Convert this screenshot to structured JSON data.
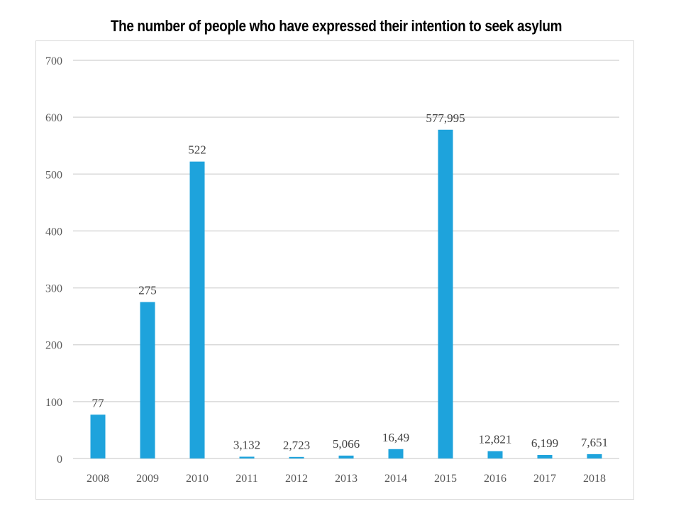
{
  "title": "The number of people who have expressed their intention to seek asylum",
  "colors": {
    "bar": "#1ea3dc",
    "grid": "#d9d9d9",
    "tick_text": "#595959",
    "label_text": "#404040"
  },
  "chart_data": {
    "type": "bar",
    "title": "The number of people who have expressed their intention to seek asylum",
    "xlabel": "",
    "ylabel": "",
    "ylim": [
      0,
      700
    ],
    "yticks": [
      0,
      100,
      200,
      300,
      400,
      500,
      600,
      700
    ],
    "grid": true,
    "categories": [
      "2008",
      "2009",
      "2010",
      "2011",
      "2012",
      "2013",
      "2014",
      "2015",
      "2016",
      "2017",
      "2018"
    ],
    "values": [
      77,
      275,
      522,
      3.132,
      2.723,
      5.066,
      16.49,
      577.995,
      12.821,
      6.199,
      7.651
    ],
    "data_labels": [
      "77",
      "275",
      "522",
      "3,132",
      "2,723",
      "5,066",
      "16,49",
      "577,995",
      "12,821",
      "6,199",
      "7,651"
    ]
  }
}
